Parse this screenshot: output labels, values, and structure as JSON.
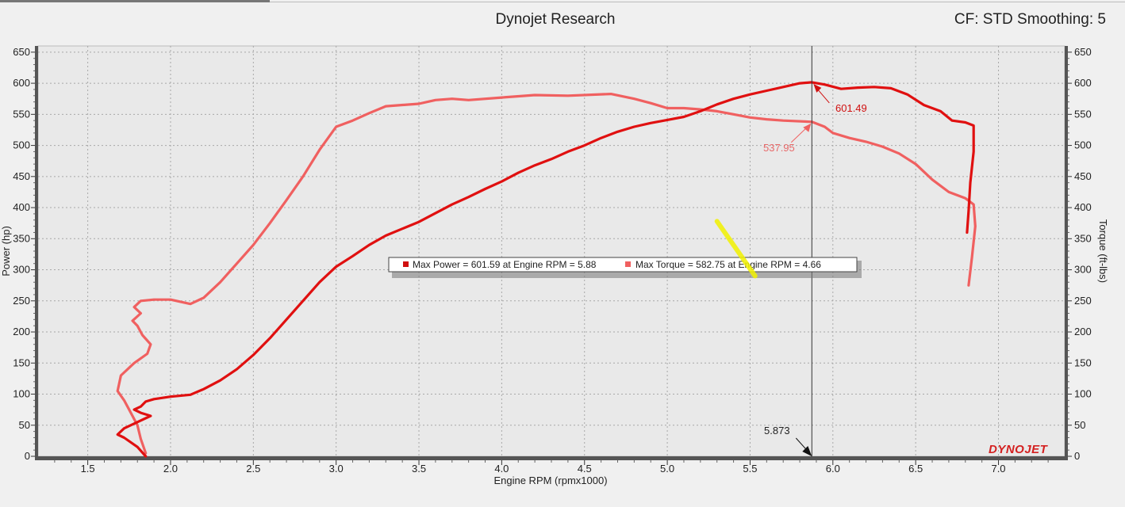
{
  "header": {
    "title": "Dynojet Research",
    "settings": "CF: STD Smoothing: 5"
  },
  "logo": {
    "text": "DYNOJET"
  },
  "chart_data": {
    "type": "line",
    "title": "Dynojet Research",
    "xlabel": "Engine RPM (rpmx1000)",
    "ylabel_left": "Power (hp)",
    "ylabel_right": "Torque (ft-lbs)",
    "xlim": [
      1.2,
      7.4
    ],
    "ylim": [
      0,
      660
    ],
    "x_ticks": [
      "1.5",
      "2.0",
      "2.5",
      "3.0",
      "3.5",
      "4.0",
      "4.5",
      "5.0",
      "5.5",
      "6.0",
      "6.5",
      "7.0"
    ],
    "y_ticks": [
      "0",
      "50",
      "100",
      "150",
      "200",
      "250",
      "300",
      "350",
      "400",
      "450",
      "500",
      "550",
      "600",
      "650"
    ],
    "grid": true,
    "legend": {
      "placement": "center",
      "power_text": "Max Power = 601.59 at Engine RPM = 5.88",
      "torque_text": "Max Torque = 582.75 at Engine RPM = 4.66"
    },
    "cursor": {
      "x": 5.873,
      "label": "5.873"
    },
    "annotations": [
      {
        "series": "power",
        "label": "601.49",
        "x": 5.873,
        "y": 601.49
      },
      {
        "series": "torque",
        "label": "537.95",
        "x": 5.873,
        "y": 537.95
      }
    ],
    "series": [
      {
        "id": "power",
        "color": "#e01010",
        "points": [
          [
            1.85,
            0
          ],
          [
            1.8,
            15
          ],
          [
            1.72,
            30
          ],
          [
            1.68,
            35
          ],
          [
            1.72,
            45
          ],
          [
            1.8,
            55
          ],
          [
            1.88,
            65
          ],
          [
            1.82,
            70
          ],
          [
            1.78,
            75
          ],
          [
            1.82,
            80
          ],
          [
            1.85,
            88
          ],
          [
            1.9,
            92
          ],
          [
            2.0,
            96
          ],
          [
            2.12,
            99
          ],
          [
            2.2,
            108
          ],
          [
            2.3,
            122
          ],
          [
            2.4,
            140
          ],
          [
            2.5,
            163
          ],
          [
            2.6,
            190
          ],
          [
            2.7,
            220
          ],
          [
            2.8,
            250
          ],
          [
            2.9,
            280
          ],
          [
            3.0,
            305
          ],
          [
            3.1,
            322
          ],
          [
            3.2,
            340
          ],
          [
            3.3,
            355
          ],
          [
            3.4,
            366
          ],
          [
            3.5,
            377
          ],
          [
            3.6,
            391
          ],
          [
            3.7,
            405
          ],
          [
            3.8,
            417
          ],
          [
            3.9,
            430
          ],
          [
            4.0,
            442
          ],
          [
            4.1,
            456
          ],
          [
            4.2,
            468
          ],
          [
            4.3,
            478
          ],
          [
            4.4,
            490
          ],
          [
            4.5,
            500
          ],
          [
            4.6,
            512
          ],
          [
            4.7,
            522
          ],
          [
            4.8,
            530
          ],
          [
            4.9,
            536
          ],
          [
            5.0,
            541
          ],
          [
            5.1,
            546
          ],
          [
            5.2,
            555
          ],
          [
            5.3,
            566
          ],
          [
            5.4,
            575
          ],
          [
            5.5,
            582
          ],
          [
            5.6,
            588
          ],
          [
            5.7,
            594
          ],
          [
            5.8,
            600
          ],
          [
            5.873,
            601.5
          ],
          [
            5.95,
            598
          ],
          [
            6.05,
            591
          ],
          [
            6.15,
            593
          ],
          [
            6.25,
            594
          ],
          [
            6.35,
            592
          ],
          [
            6.45,
            582
          ],
          [
            6.55,
            565
          ],
          [
            6.65,
            555
          ],
          [
            6.72,
            540
          ],
          [
            6.8,
            537
          ],
          [
            6.85,
            532
          ],
          [
            6.85,
            490
          ],
          [
            6.83,
            440
          ],
          [
            6.82,
            395
          ],
          [
            6.81,
            360
          ]
        ]
      },
      {
        "id": "torque",
        "color": "#f06060",
        "points": [
          [
            1.85,
            5
          ],
          [
            1.82,
            28
          ],
          [
            1.8,
            50
          ],
          [
            1.75,
            75
          ],
          [
            1.72,
            90
          ],
          [
            1.68,
            105
          ],
          [
            1.7,
            130
          ],
          [
            1.78,
            150
          ],
          [
            1.86,
            165
          ],
          [
            1.88,
            180
          ],
          [
            1.83,
            195
          ],
          [
            1.8,
            210
          ],
          [
            1.77,
            218
          ],
          [
            1.82,
            230
          ],
          [
            1.78,
            240
          ],
          [
            1.82,
            250
          ],
          [
            1.9,
            252
          ],
          [
            2.0,
            252
          ],
          [
            2.12,
            245
          ],
          [
            2.2,
            255
          ],
          [
            2.3,
            280
          ],
          [
            2.4,
            310
          ],
          [
            2.5,
            340
          ],
          [
            2.6,
            375
          ],
          [
            2.7,
            412
          ],
          [
            2.8,
            450
          ],
          [
            2.9,
            493
          ],
          [
            3.0,
            530
          ],
          [
            3.1,
            540
          ],
          [
            3.2,
            552
          ],
          [
            3.3,
            563
          ],
          [
            3.5,
            567
          ],
          [
            3.6,
            573
          ],
          [
            3.7,
            575
          ],
          [
            3.8,
            573
          ],
          [
            4.0,
            577
          ],
          [
            4.2,
            581
          ],
          [
            4.4,
            580
          ],
          [
            4.66,
            582.75
          ],
          [
            4.8,
            575
          ],
          [
            4.9,
            568
          ],
          [
            5.0,
            560
          ],
          [
            5.1,
            560
          ],
          [
            5.2,
            558
          ],
          [
            5.3,
            555
          ],
          [
            5.4,
            550
          ],
          [
            5.5,
            545
          ],
          [
            5.6,
            542
          ],
          [
            5.7,
            540
          ],
          [
            5.873,
            537.95
          ],
          [
            5.95,
            530
          ],
          [
            6.0,
            520
          ],
          [
            6.1,
            512
          ],
          [
            6.2,
            506
          ],
          [
            6.3,
            498
          ],
          [
            6.4,
            487
          ],
          [
            6.5,
            470
          ],
          [
            6.6,
            445
          ],
          [
            6.7,
            425
          ],
          [
            6.8,
            415
          ],
          [
            6.85,
            405
          ],
          [
            6.86,
            370
          ],
          [
            6.84,
            320
          ],
          [
            6.82,
            275
          ]
        ]
      }
    ],
    "highlighter_mark": {
      "color": "#f2f200",
      "from": [
        5.3,
        378
      ],
      "to": [
        5.53,
        290
      ]
    }
  }
}
